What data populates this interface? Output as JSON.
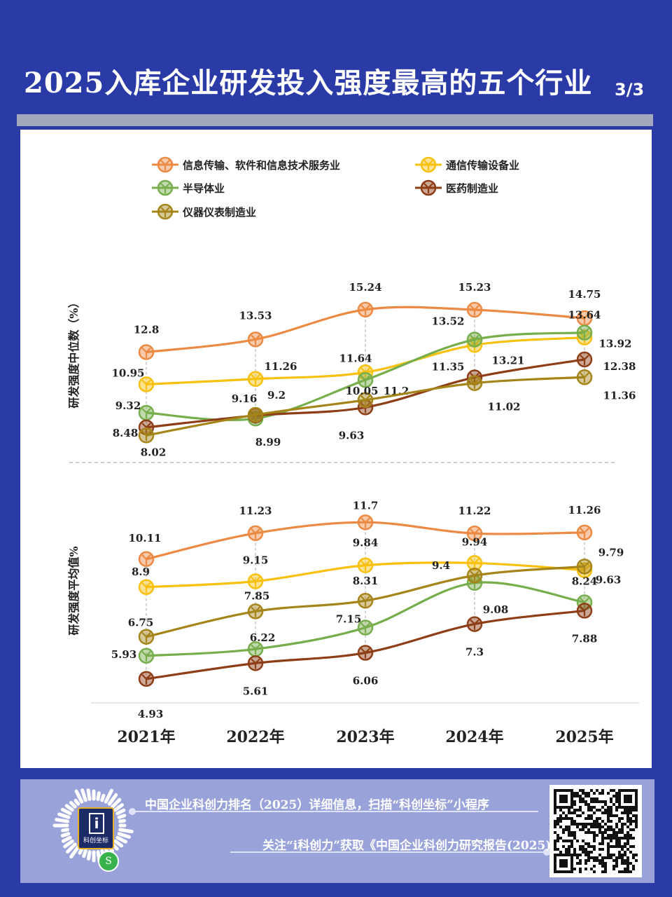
{
  "header": {
    "title": "2025入库企业研发投入强度最高的五个行业",
    "page": "3/3"
  },
  "chart_data": {
    "type": "line",
    "categories": [
      "2021年",
      "2022年",
      "2023年",
      "2024年",
      "2025年"
    ],
    "series": [
      {
        "name": "信息传输、软件和信息技术服务业",
        "color": "#ec8a43"
      },
      {
        "name": "通信传输设备业",
        "color": "#f8c00f"
      },
      {
        "name": "半导体业",
        "color": "#77ae4c"
      },
      {
        "name": "医药制造业",
        "color": "#8e3e17"
      },
      {
        "name": "仪器仪表制造业",
        "color": "#a5851a"
      }
    ],
    "panels": [
      {
        "ylabel": "研发强度中位数（%）",
        "values": [
          [
            12.8,
            13.53,
            15.24,
            15.23,
            14.75
          ],
          [
            10.95,
            11.26,
            11.64,
            13.21,
            13.64
          ],
          [
            9.32,
            8.99,
            11.2,
            13.52,
            13.92
          ],
          [
            8.48,
            9.16,
            9.63,
            11.35,
            12.38
          ],
          [
            8.02,
            9.2,
            10.05,
            11.02,
            11.36
          ]
        ]
      },
      {
        "ylabel": "研发强度平均值%",
        "values": [
          [
            10.11,
            11.23,
            11.7,
            11.22,
            11.26
          ],
          [
            8.9,
            9.15,
            9.84,
            9.94,
            9.63
          ],
          [
            5.93,
            6.22,
            7.15,
            9.08,
            8.24
          ],
          [
            4.93,
            5.61,
            6.06,
            7.3,
            7.88
          ],
          [
            6.75,
            7.85,
            8.31,
            9.4,
            9.79
          ]
        ]
      }
    ]
  },
  "footer": {
    "line1": "中国企业科创力排名（2025）详细信息，扫描“科创坐标”小程序",
    "line2": "关注“i科创力”获取《中国企业科创力研究报告(2025)》",
    "logo_text": "科创坐标",
    "logo_icon": "i-logo-icon"
  }
}
